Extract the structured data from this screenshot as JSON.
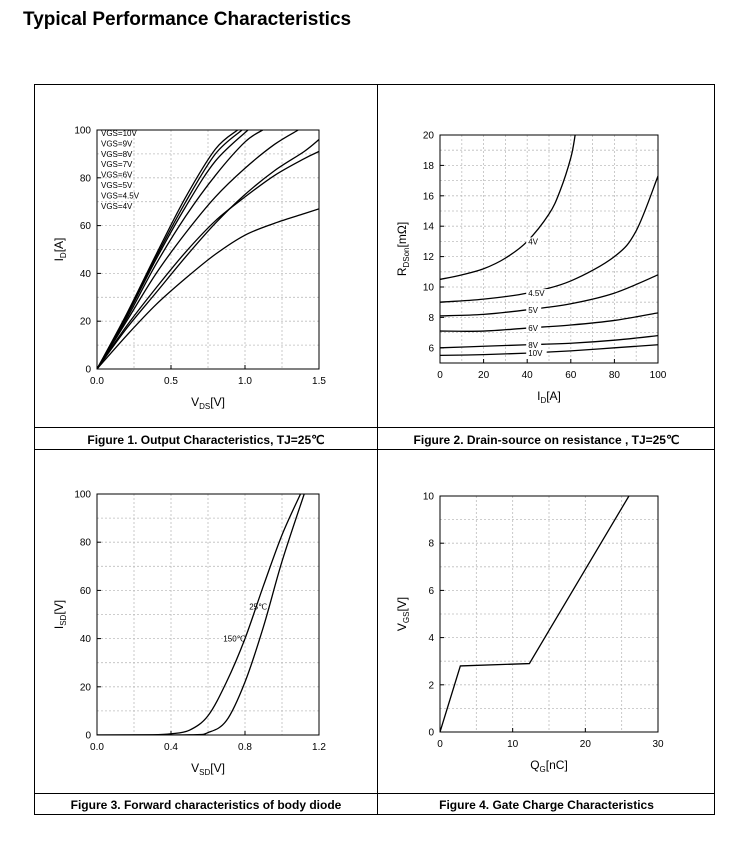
{
  "page": {
    "title": "Typical Performance Characteristics"
  },
  "chart_data": [
    {
      "type": "line",
      "caption": "Figure 1. Output Characteristics, TJ=25℃",
      "xlabel_main": "V",
      "xlabel_sub": "DS",
      "xlabel_unit": "[V]",
      "ylabel_main": "I",
      "ylabel_sub": "D",
      "ylabel_unit": "[A]",
      "xlim": [
        0,
        1.5
      ],
      "ylim": [
        0,
        100
      ],
      "xticks": [
        "0.0",
        "0.5",
        "1.0",
        "1.5"
      ],
      "yticks": [
        "0",
        "20",
        "40",
        "60",
        "80",
        "100"
      ],
      "legend": [
        "VGS=10V",
        "VGS=9V",
        "VGS=8V",
        "VGS=7V",
        "VGS=6V",
        "VGS=5V",
        "VGS=4.5V",
        "VGS=4V"
      ],
      "legend_position": "top-left",
      "grid": true,
      "series": [
        {
          "name": "VGS=10V",
          "x": [
            0,
            0.2,
            0.4,
            0.6,
            0.8,
            0.95
          ],
          "y": [
            0,
            23,
            48,
            72,
            92,
            100
          ]
        },
        {
          "name": "VGS=9V",
          "x": [
            0,
            0.2,
            0.4,
            0.6,
            0.8,
            0.98
          ],
          "y": [
            0,
            22.5,
            47,
            70,
            90,
            100
          ]
        },
        {
          "name": "VGS=8V",
          "x": [
            0,
            0.2,
            0.4,
            0.6,
            0.8,
            1.02
          ],
          "y": [
            0,
            22,
            46,
            68,
            87,
            100
          ]
        },
        {
          "name": "VGS=7V",
          "x": [
            0,
            0.2,
            0.4,
            0.6,
            0.8,
            1.0,
            1.12
          ],
          "y": [
            0,
            21,
            44,
            64,
            81,
            95,
            100
          ]
        },
        {
          "name": "VGS=6V",
          "x": [
            0,
            0.2,
            0.4,
            0.6,
            0.8,
            1.0,
            1.2,
            1.36
          ],
          "y": [
            0,
            20,
            40,
            57,
            72,
            84,
            94,
            100
          ]
        },
        {
          "name": "VGS=5V",
          "x": [
            0,
            0.2,
            0.4,
            0.6,
            0.8,
            1.0,
            1.2,
            1.4,
            1.5
          ],
          "y": [
            0,
            18,
            34,
            49,
            62,
            72,
            81,
            88,
            91
          ]
        },
        {
          "name": "VGS=4.5V",
          "x": [
            0,
            0.2,
            0.4,
            0.6,
            0.8,
            1.0,
            1.2,
            1.4,
            1.5
          ],
          "y": [
            0,
            17,
            32,
            47,
            61,
            73,
            83,
            91,
            96
          ]
        },
        {
          "name": "VGS=4V",
          "x": [
            0,
            0.2,
            0.4,
            0.6,
            0.8,
            1.0,
            1.2,
            1.4,
            1.5
          ],
          "y": [
            0,
            14,
            27,
            38,
            48,
            56,
            61,
            65,
            67
          ]
        }
      ]
    },
    {
      "type": "line",
      "caption": "Figure 2. Drain-source on resistance , TJ=25℃",
      "xlabel_main": "I",
      "xlabel_sub": "D",
      "xlabel_unit": "[A]",
      "ylabel_main": "R",
      "ylabel_sub": "DSon",
      "ylabel_unit": "[mΩ]",
      "xlim": [
        0,
        100
      ],
      "ylim": [
        5,
        20
      ],
      "xticks": [
        "0",
        "20",
        "40",
        "60",
        "80",
        "100"
      ],
      "yticks": [
        "6",
        "8",
        "10",
        "12",
        "14",
        "16",
        "18",
        "20"
      ],
      "grid": true,
      "series": [
        {
          "name": "4V",
          "x": [
            0,
            10,
            20,
            30,
            40,
            50,
            55,
            60,
            62
          ],
          "y": [
            10.5,
            10.8,
            11.2,
            11.9,
            13.0,
            14.8,
            16.3,
            18.5,
            20
          ]
        },
        {
          "name": "4.5V",
          "x": [
            0,
            20,
            40,
            60,
            80,
            90,
            100
          ],
          "y": [
            9.0,
            9.2,
            9.6,
            10.4,
            12.0,
            13.7,
            17.3
          ]
        },
        {
          "name": "5V",
          "x": [
            0,
            20,
            40,
            60,
            80,
            100
          ],
          "y": [
            8.1,
            8.2,
            8.5,
            8.9,
            9.6,
            10.8
          ]
        },
        {
          "name": "6V",
          "x": [
            0,
            20,
            40,
            60,
            80,
            100
          ],
          "y": [
            7.1,
            7.1,
            7.3,
            7.5,
            7.8,
            8.3
          ]
        },
        {
          "name": "8V",
          "x": [
            0,
            20,
            40,
            60,
            80,
            100
          ],
          "y": [
            6.0,
            6.1,
            6.2,
            6.3,
            6.5,
            6.8
          ]
        },
        {
          "name": "10V",
          "x": [
            0,
            20,
            40,
            60,
            80,
            100
          ],
          "y": [
            5.5,
            5.55,
            5.65,
            5.8,
            6.0,
            6.2
          ]
        }
      ]
    },
    {
      "type": "line",
      "caption": "Figure 3. Forward characteristics of body diode",
      "xlabel_main": "V",
      "xlabel_sub": "SD",
      "xlabel_unit": "[V]",
      "ylabel_main": "I",
      "ylabel_sub": "SD",
      "ylabel_unit": "[V]",
      "xlim": [
        0,
        1.2
      ],
      "ylim": [
        0,
        100
      ],
      "xticks": [
        "0.0",
        "0.4",
        "0.8",
        "1.2"
      ],
      "yticks": [
        "0",
        "20",
        "40",
        "60",
        "80",
        "100"
      ],
      "grid": true,
      "series": [
        {
          "name": "150℃",
          "x": [
            0,
            0.3,
            0.4,
            0.5,
            0.6,
            0.7,
            0.8,
            0.9,
            1.0,
            1.1
          ],
          "y": [
            0,
            0.1,
            0.5,
            2,
            8,
            22,
            40,
            62,
            83,
            100
          ]
        },
        {
          "name": "25℃",
          "x": [
            0,
            0.5,
            0.6,
            0.7,
            0.8,
            0.9,
            1.0,
            1.12
          ],
          "y": [
            0,
            0.1,
            1,
            6,
            22,
            45,
            72,
            100
          ]
        }
      ]
    },
    {
      "type": "line",
      "caption": "Figure 4. Gate Charge Characteristics",
      "xlabel_main": "Q",
      "xlabel_sub": "G",
      "xlabel_unit": "[nC]",
      "ylabel_main": "V",
      "ylabel_sub": "GS",
      "ylabel_unit": "[V]",
      "xlim": [
        0,
        30
      ],
      "ylim": [
        0,
        10
      ],
      "xticks": [
        "0",
        "10",
        "20",
        "30"
      ],
      "yticks": [
        "0",
        "2",
        "4",
        "6",
        "8",
        "10"
      ],
      "grid": true,
      "series": [
        {
          "name": "",
          "x": [
            0,
            2.8,
            12.3,
            26
          ],
          "y": [
            0,
            2.8,
            2.9,
            10
          ]
        }
      ]
    }
  ]
}
